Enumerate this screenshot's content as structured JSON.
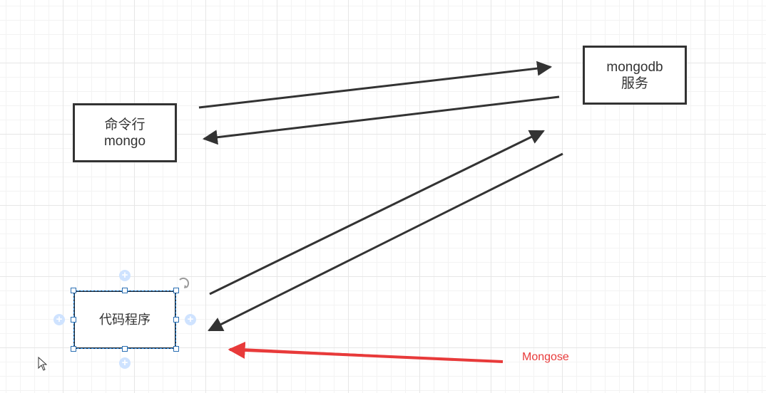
{
  "diagram": {
    "nodes": {
      "cli": {
        "line1": "命令行",
        "line2": "mongo"
      },
      "server": {
        "line1": "mongodb",
        "line2": "服务"
      },
      "code": {
        "label": "代码程序"
      }
    },
    "annotation": {
      "label": "Mongose",
      "color": "#e83a3a"
    },
    "edges": [
      {
        "from": "cli",
        "to": "server"
      },
      {
        "from": "server",
        "to": "cli"
      },
      {
        "from": "code",
        "to": "server"
      },
      {
        "from": "server",
        "to": "code"
      }
    ],
    "icons": [
      "plus-icon",
      "rotate-icon",
      "cursor-icon"
    ]
  }
}
